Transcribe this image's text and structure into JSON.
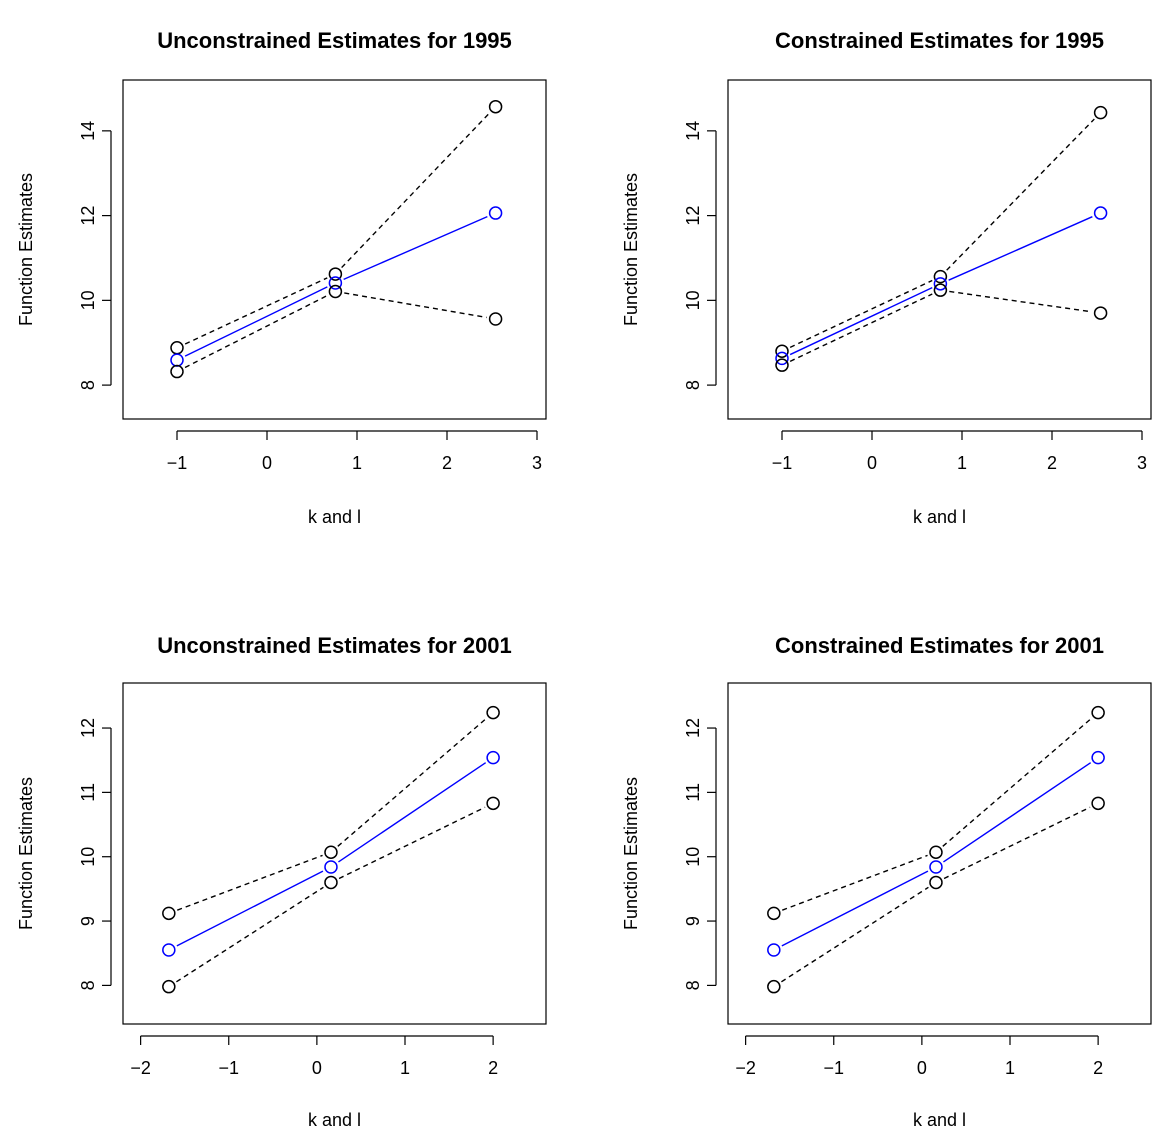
{
  "colors": {
    "band": "#000000",
    "estimate": "#0000ff"
  },
  "chart_data": [
    {
      "type": "line",
      "title": "Unconstrained Estimates for 1995",
      "xlabel": "k and l",
      "ylabel": "Function Estimates",
      "xlim": [
        -1.6,
        3.1
      ],
      "ylim": [
        7.2,
        15.2
      ],
      "xticks": [
        -1,
        0,
        1,
        2,
        3
      ],
      "xtick_labels": [
        "−1",
        "0",
        "1",
        "2",
        "3"
      ],
      "yticks": [
        8,
        10,
        12,
        14
      ],
      "ytick_labels": [
        "8",
        "10",
        "12",
        "14"
      ],
      "x": [
        -1.0,
        0.76,
        2.54
      ],
      "series": [
        {
          "values": [
            8.88,
            10.62,
            14.57
          ],
          "style": "dashed",
          "color": "#000000"
        },
        {
          "values": [
            8.59,
            10.41,
            12.06
          ],
          "style": "solid",
          "color": "#0000ff"
        },
        {
          "values": [
            8.32,
            10.21,
            9.56
          ],
          "style": "dashed",
          "color": "#000000"
        }
      ],
      "grid": false
    },
    {
      "type": "line",
      "title": "Constrained Estimates for 1995",
      "xlabel": "k and l",
      "ylabel": "Function Estimates",
      "xlim": [
        -1.6,
        3.1
      ],
      "ylim": [
        7.2,
        15.2
      ],
      "xticks": [
        -1,
        0,
        1,
        2,
        3
      ],
      "xtick_labels": [
        "−1",
        "0",
        "1",
        "2",
        "3"
      ],
      "yticks": [
        8,
        10,
        12,
        14
      ],
      "ytick_labels": [
        "8",
        "10",
        "12",
        "14"
      ],
      "x": [
        -1.0,
        0.76,
        2.54
      ],
      "series": [
        {
          "values": [
            8.8,
            10.56,
            14.43
          ],
          "style": "dashed",
          "color": "#000000"
        },
        {
          "values": [
            8.63,
            10.39,
            12.06
          ],
          "style": "solid",
          "color": "#0000ff"
        },
        {
          "values": [
            8.47,
            10.24,
            9.7
          ],
          "style": "dashed",
          "color": "#000000"
        }
      ],
      "grid": false
    },
    {
      "type": "line",
      "title": "Unconstrained Estimates for 2001",
      "xlabel": "k and l",
      "ylabel": "Function Estimates",
      "xlim": [
        -2.2,
        2.6
      ],
      "ylim": [
        7.4,
        12.7
      ],
      "xticks": [
        -2,
        -1,
        0,
        1,
        2
      ],
      "xtick_labels": [
        "−2",
        "−1",
        "0",
        "1",
        "2"
      ],
      "yticks": [
        8,
        9,
        10,
        11,
        12
      ],
      "ytick_labels": [
        "8",
        "9",
        "10",
        "11",
        "12"
      ],
      "x": [
        -1.68,
        0.16,
        2.0
      ],
      "series": [
        {
          "values": [
            9.12,
            10.07,
            12.24
          ],
          "style": "dashed",
          "color": "#000000"
        },
        {
          "values": [
            8.55,
            9.84,
            11.54
          ],
          "style": "solid",
          "color": "#0000ff"
        },
        {
          "values": [
            7.98,
            9.6,
            10.83
          ],
          "style": "dashed",
          "color": "#000000"
        }
      ],
      "grid": false
    },
    {
      "type": "line",
      "title": "Constrained Estimates for 2001",
      "xlabel": "k and l",
      "ylabel": "Function Estimates",
      "xlim": [
        -2.2,
        2.6
      ],
      "ylim": [
        7.4,
        12.7
      ],
      "xticks": [
        -2,
        -1,
        0,
        1,
        2
      ],
      "xtick_labels": [
        "−2",
        "−1",
        "0",
        "1",
        "2"
      ],
      "yticks": [
        8,
        9,
        10,
        11,
        12
      ],
      "ytick_labels": [
        "8",
        "9",
        "10",
        "11",
        "12"
      ],
      "x": [
        -1.68,
        0.16,
        2.0
      ],
      "series": [
        {
          "values": [
            9.12,
            10.07,
            12.24
          ],
          "style": "dashed",
          "color": "#000000"
        },
        {
          "values": [
            8.55,
            9.84,
            11.54
          ],
          "style": "solid",
          "color": "#0000ff"
        },
        {
          "values": [
            7.98,
            9.6,
            10.83
          ],
          "style": "dashed",
          "color": "#000000"
        }
      ],
      "grid": false
    }
  ]
}
